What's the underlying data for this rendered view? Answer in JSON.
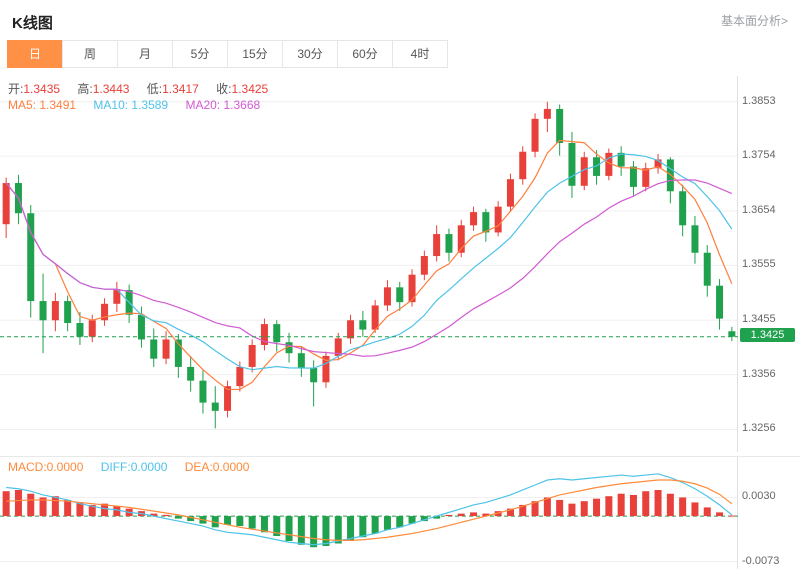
{
  "header": {
    "title": "K线图",
    "link_label": "基本面分析>"
  },
  "tabs": {
    "items": [
      {
        "label": "日",
        "active": true
      },
      {
        "label": "周",
        "active": false
      },
      {
        "label": "月",
        "active": false
      },
      {
        "label": "5分",
        "active": false
      },
      {
        "label": "15分",
        "active": false
      },
      {
        "label": "30分",
        "active": false
      },
      {
        "label": "60分",
        "active": false
      },
      {
        "label": "4时",
        "active": false
      }
    ]
  },
  "legend": {
    "ohlc": [
      {
        "label": "开:",
        "value": "1.3435"
      },
      {
        "label": "高:",
        "value": "1.3443"
      },
      {
        "label": "低:",
        "value": "1.3417"
      },
      {
        "label": "收:",
        "value": "1.3425"
      }
    ],
    "ma": [
      {
        "label": "MA5: ",
        "value": "1.3491"
      },
      {
        "label": "MA10: ",
        "value": "1.3589"
      },
      {
        "label": "MA20: ",
        "value": "1.3668"
      }
    ]
  },
  "macd_legend": [
    {
      "label": "MACD:",
      "value": "0.0000"
    },
    {
      "label": "DIFF:",
      "value": "0.0000"
    },
    {
      "label": "DEA:",
      "value": "0.0000"
    }
  ],
  "colors": {
    "up": "#e8403a",
    "down": "#1fa14d",
    "ma5": "#ff7e3e",
    "ma10": "#4ec3e8",
    "ma20": "#d25ad2",
    "diff": "#4ec3e8",
    "dea": "#ff8a3b",
    "macd": "#ff8a3b",
    "tab_active": "#ff9147",
    "price_tag_bg": "#1fa14d",
    "link": "#9aa0a6",
    "grid": "#f0f0f0",
    "axis_text": "#666666"
  },
  "chart_data": {
    "type": "candlestick",
    "title": "K线图",
    "period_selected": "日",
    "ohlc_last": {
      "open": 1.3435,
      "high": 1.3443,
      "low": 1.3417,
      "close": 1.3425
    },
    "ma_values": {
      "MA5": 1.3491,
      "MA10": 1.3589,
      "MA20": 1.3668
    },
    "current_price": 1.3425,
    "y_ticks": [
      1.3853,
      1.3754,
      1.3654,
      1.3555,
      1.3455,
      1.3356,
      1.3256
    ],
    "y_range": [
      1.3215,
      1.39
    ],
    "grid": true,
    "candles": [
      [
        1.363,
        1.3715,
        1.3605,
        1.3705
      ],
      [
        1.3705,
        1.372,
        1.363,
        1.365
      ],
      [
        1.365,
        1.3665,
        1.346,
        1.349
      ],
      [
        1.349,
        1.354,
        1.3395,
        1.3455
      ],
      [
        1.3455,
        1.3505,
        1.3435,
        1.349
      ],
      [
        1.349,
        1.35,
        1.3435,
        1.345
      ],
      [
        1.345,
        1.347,
        1.341,
        1.3425
      ],
      [
        1.3425,
        1.3465,
        1.3415,
        1.3455
      ],
      [
        1.3455,
        1.3495,
        1.3445,
        1.3485
      ],
      [
        1.3485,
        1.3525,
        1.347,
        1.351
      ],
      [
        1.351,
        1.352,
        1.345,
        1.3465
      ],
      [
        1.3465,
        1.348,
        1.3405,
        1.342
      ],
      [
        1.342,
        1.344,
        1.337,
        1.3385
      ],
      [
        1.3385,
        1.3435,
        1.3375,
        1.342
      ],
      [
        1.342,
        1.343,
        1.335,
        1.337
      ],
      [
        1.337,
        1.339,
        1.3325,
        1.3345
      ],
      [
        1.3345,
        1.3365,
        1.3285,
        1.3305
      ],
      [
        1.3305,
        1.3335,
        1.3258,
        1.329
      ],
      [
        1.329,
        1.3345,
        1.3278,
        1.3335
      ],
      [
        1.3335,
        1.338,
        1.3325,
        1.337
      ],
      [
        1.337,
        1.342,
        1.336,
        1.341
      ],
      [
        1.341,
        1.3458,
        1.34,
        1.3448
      ],
      [
        1.3448,
        1.3455,
        1.3398,
        1.3415
      ],
      [
        1.3415,
        1.3432,
        1.3378,
        1.3395
      ],
      [
        1.3395,
        1.3408,
        1.3352,
        1.3368
      ],
      [
        1.3368,
        1.3382,
        1.3298,
        1.3342
      ],
      [
        1.3342,
        1.3398,
        1.3332,
        1.339
      ],
      [
        1.339,
        1.3432,
        1.3382,
        1.3422
      ],
      [
        1.3422,
        1.3465,
        1.3412,
        1.3455
      ],
      [
        1.3455,
        1.3472,
        1.3425,
        1.3438
      ],
      [
        1.3438,
        1.3492,
        1.3432,
        1.3482
      ],
      [
        1.3482,
        1.3528,
        1.3472,
        1.3515
      ],
      [
        1.3515,
        1.3525,
        1.3472,
        1.3488
      ],
      [
        1.3488,
        1.3548,
        1.348,
        1.3538
      ],
      [
        1.3538,
        1.3582,
        1.3528,
        1.3572
      ],
      [
        1.3572,
        1.3628,
        1.3562,
        1.3612
      ],
      [
        1.3612,
        1.3622,
        1.3562,
        1.3578
      ],
      [
        1.3578,
        1.3638,
        1.357,
        1.3628
      ],
      [
        1.3628,
        1.3662,
        1.3618,
        1.3652
      ],
      [
        1.3652,
        1.3658,
        1.3598,
        1.3615
      ],
      [
        1.3615,
        1.3672,
        1.3608,
        1.3662
      ],
      [
        1.3662,
        1.3722,
        1.3652,
        1.3712
      ],
      [
        1.3712,
        1.3772,
        1.3702,
        1.3762
      ],
      [
        1.3762,
        1.3832,
        1.3752,
        1.3822
      ],
      [
        1.3822,
        1.3853,
        1.3798,
        1.384
      ],
      [
        1.384,
        1.3848,
        1.3755,
        1.3778
      ],
      [
        1.3778,
        1.3798,
        1.3678,
        1.37
      ],
      [
        1.37,
        1.3762,
        1.3692,
        1.3752
      ],
      [
        1.3752,
        1.3765,
        1.3702,
        1.3718
      ],
      [
        1.3718,
        1.3768,
        1.371,
        1.376
      ],
      [
        1.376,
        1.3772,
        1.3718,
        1.3735
      ],
      [
        1.3735,
        1.3745,
        1.3682,
        1.3698
      ],
      [
        1.3698,
        1.3742,
        1.369,
        1.3732
      ],
      [
        1.3732,
        1.3758,
        1.3722,
        1.3748
      ],
      [
        1.3748,
        1.3752,
        1.3668,
        1.369
      ],
      [
        1.369,
        1.3702,
        1.3608,
        1.3628
      ],
      [
        1.3628,
        1.3645,
        1.3558,
        1.3578
      ],
      [
        1.3578,
        1.3592,
        1.3498,
        1.3518
      ],
      [
        1.3518,
        1.353,
        1.3438,
        1.3458
      ],
      [
        1.3435,
        1.3443,
        1.3417,
        1.3425
      ]
    ],
    "macd": {
      "values": {
        "MACD": 0.0,
        "DIFF": 0.0,
        "DEA": 0.0
      },
      "y_ticks": [
        0.003,
        -0.0073
      ],
      "y_range": [
        -0.0085,
        0.0095
      ],
      "hist": [
        0.004,
        0.0042,
        0.0036,
        0.003,
        0.0032,
        0.0026,
        0.0022,
        0.0018,
        0.002,
        0.0016,
        0.0012,
        0.0008,
        0.0004,
        0.0002,
        -0.0004,
        -0.0008,
        -0.0012,
        -0.0018,
        -0.0014,
        -0.0016,
        -0.002,
        -0.0026,
        -0.0032,
        -0.004,
        -0.0046,
        -0.005,
        -0.0048,
        -0.0044,
        -0.004,
        -0.0034,
        -0.0028,
        -0.0022,
        -0.0018,
        -0.0012,
        -0.0008,
        -0.0004,
        0.0002,
        0.0004,
        0.0006,
        0.0004,
        0.0008,
        0.0012,
        0.0018,
        0.0024,
        0.003,
        0.0026,
        0.002,
        0.0024,
        0.0028,
        0.0032,
        0.0036,
        0.0034,
        0.004,
        0.0042,
        0.0036,
        0.003,
        0.0022,
        0.0014,
        0.0006,
        0.0001
      ],
      "diff": [
        0.0046,
        0.0044,
        0.004,
        0.0034,
        0.003,
        0.0026,
        0.002,
        0.0016,
        0.0012,
        0.001,
        0.0006,
        0.0004,
        0.0,
        -0.0004,
        -0.0008,
        -0.0012,
        -0.0016,
        -0.0022,
        -0.0026,
        -0.0028,
        -0.003,
        -0.0034,
        -0.0038,
        -0.0042,
        -0.0044,
        -0.0046,
        -0.0044,
        -0.004,
        -0.0036,
        -0.0032,
        -0.0028,
        -0.0022,
        -0.0018,
        -0.0012,
        -0.0006,
        0.0,
        0.0006,
        0.0012,
        0.0018,
        0.0022,
        0.0028,
        0.0034,
        0.0042,
        0.005,
        0.0058,
        0.006,
        0.0058,
        0.006,
        0.0062,
        0.0064,
        0.0066,
        0.0064,
        0.0066,
        0.0068,
        0.0062,
        0.0054,
        0.0044,
        0.0032,
        0.0018,
        0.0002
      ],
      "dea": [
        0.0024,
        0.0025,
        0.0026,
        0.0026,
        0.0025,
        0.0024,
        0.0022,
        0.002,
        0.0018,
        0.0016,
        0.0014,
        0.0011,
        0.0008,
        0.0005,
        0.0002,
        -0.0002,
        -0.0006,
        -0.001,
        -0.0014,
        -0.0018,
        -0.0021,
        -0.0024,
        -0.0027,
        -0.003,
        -0.0033,
        -0.0036,
        -0.0038,
        -0.0039,
        -0.0039,
        -0.0038,
        -0.0036,
        -0.0034,
        -0.0031,
        -0.0028,
        -0.0024,
        -0.002,
        -0.0015,
        -0.001,
        -0.0005,
        0.0,
        0.0005,
        0.001,
        0.0016,
        0.0022,
        0.0028,
        0.0034,
        0.0038,
        0.0042,
        0.0046,
        0.0049,
        0.0052,
        0.0054,
        0.0056,
        0.0058,
        0.0058,
        0.0056,
        0.0052,
        0.0045,
        0.0035,
        0.002
      ]
    }
  }
}
